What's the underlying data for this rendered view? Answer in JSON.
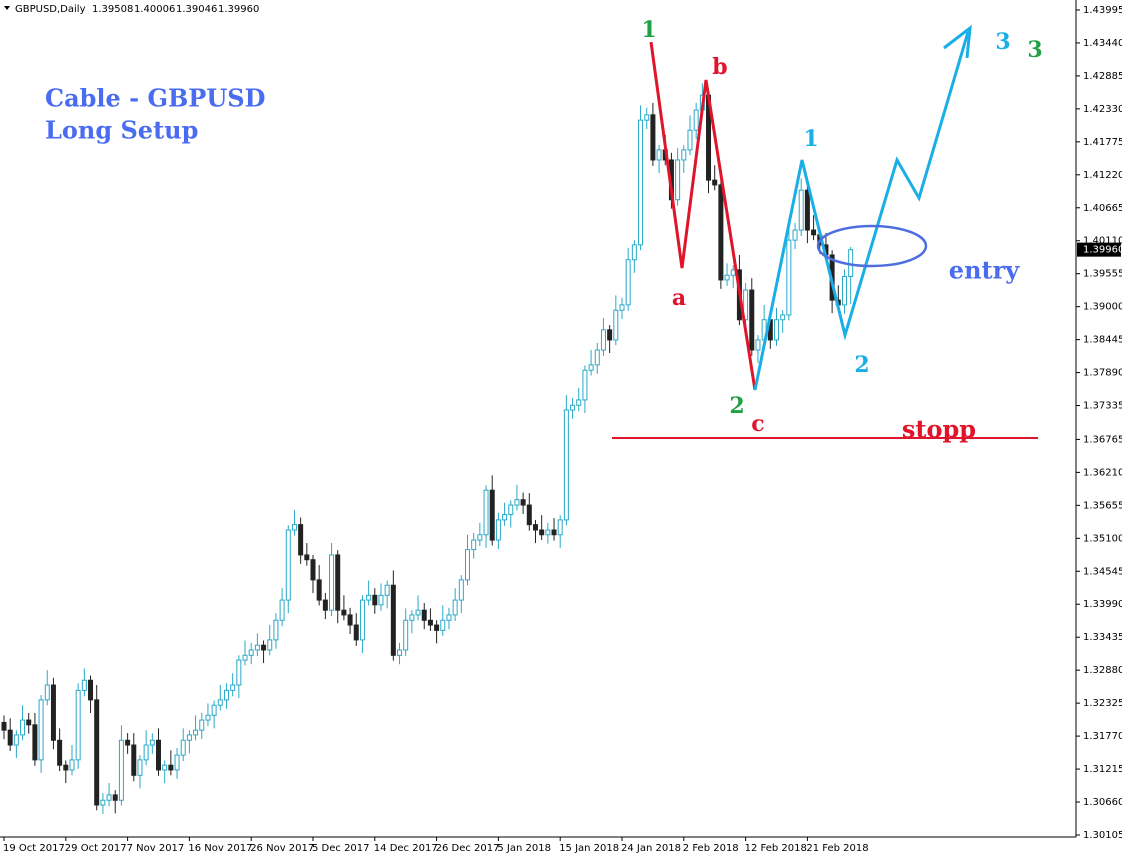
{
  "chart_data": {
    "type": "candlestick",
    "symbol": "GBPUSD,Daily",
    "header_values": [
      "1.39508",
      "1.40006",
      "1.39046",
      "1.39960"
    ],
    "categories": [
      "19 Oct 2017",
      null,
      null,
      null,
      null,
      null,
      null,
      null,
      null,
      null,
      "29 Oct 2017",
      null,
      null,
      null,
      null,
      null,
      null,
      null,
      null,
      null,
      "7 Nov 2017",
      null,
      null,
      null,
      null,
      null,
      null,
      null,
      null,
      null,
      "16 Nov 2017",
      null,
      null,
      null,
      null,
      null,
      null,
      null,
      null,
      null,
      "26 Nov 2017",
      null,
      null,
      null,
      null,
      null,
      null,
      null,
      null,
      null,
      "5 Dec 2017",
      null,
      null,
      null,
      null,
      null,
      null,
      null,
      null,
      null,
      "14 Dec 2017",
      null,
      null,
      null,
      null,
      null,
      null,
      null,
      null,
      null,
      "26 Dec 2017",
      null,
      null,
      null,
      null,
      null,
      null,
      null,
      null,
      null,
      "5 Jan 2018",
      null,
      null,
      null,
      null,
      null,
      null,
      null,
      null,
      null,
      "15 Jan 2018",
      null,
      null,
      null,
      null,
      null,
      null,
      null,
      null,
      null,
      "24 Jan 2018",
      null,
      null,
      null,
      null,
      null,
      null,
      null,
      null,
      null,
      "2 Feb 2018",
      null,
      null,
      null,
      null,
      null,
      null,
      null,
      null,
      null,
      "12 Feb 2018",
      null,
      null,
      null,
      null,
      null,
      null,
      null,
      null,
      null,
      "21 Feb 2018",
      null,
      null,
      null,
      null,
      null,
      null,
      null
    ],
    "open": [
      1.32,
      1.3187,
      1.3162,
      1.3179,
      1.3204,
      1.3196,
      1.3137,
      1.3238,
      1.3263,
      1.317,
      1.3128,
      1.312,
      1.3137,
      1.3254,
      1.3271,
      1.3238,
      1.3061,
      1.3069,
      1.3078,
      1.3069,
      1.317,
      1.3162,
      1.3111,
      1.3137,
      1.3162,
      1.317,
      1.312,
      1.3128,
      1.312,
      1.3145,
      1.317,
      1.3179,
      1.3187,
      1.3204,
      1.3212,
      1.3229,
      1.3238,
      1.3254,
      1.3263,
      1.3305,
      1.3313,
      1.3322,
      1.333,
      1.3322,
      1.3339,
      1.3372,
      1.3406,
      1.3524,
      1.3533,
      1.3482,
      1.3474,
      1.344,
      1.3406,
      1.3389,
      1.3482,
      1.3389,
      1.3381,
      1.3364,
      1.3339,
      1.3406,
      1.3414,
      1.3398,
      1.3414,
      1.3431,
      1.3313,
      1.3322,
      1.3372,
      1.3381,
      1.3389,
      1.3372,
      1.3364,
      1.3355,
      1.3372,
      1.3381,
      1.3406,
      1.344,
      1.3491,
      1.3507,
      1.3516,
      1.3591,
      1.3507,
      1.3541,
      1.355,
      1.3566,
      1.3575,
      1.3566,
      1.3533,
      1.3524,
      1.3516,
      1.3524,
      1.3516,
      1.3541,
      1.3726,
      1.3734,
      1.3743,
      1.3793,
      1.3802,
      1.3827,
      1.3861,
      1.3844,
      1.3894,
      1.3903,
      1.3979,
      1.4004,
      1.4214,
      1.4223,
      1.4147,
      1.4164,
      1.4147,
      1.408,
      1.4147,
      1.4164,
      1.4197,
      1.4231,
      1.4256,
      1.4113,
      1.4105,
      1.3945,
      1.3953,
      1.3962,
      1.3878,
      1.3928,
      1.3827,
      1.3844,
      1.3878,
      1.3844,
      1.3878,
      1.3886,
      1.4012,
      1.4029,
      1.4096,
      1.4029,
      1.4021,
      1.4004,
      1.3987,
      1.3911,
      1.3903,
      1.39508
    ],
    "high": [
      1.3212,
      1.3207,
      1.3187,
      1.3229,
      1.3216,
      1.3216,
      1.3246,
      1.3288,
      1.3275,
      1.319,
      1.3136,
      1.3162,
      1.3266,
      1.3291,
      1.3279,
      1.3263,
      1.3081,
      1.3098,
      1.3086,
      1.3195,
      1.3182,
      1.3182,
      1.3145,
      1.3187,
      1.3182,
      1.319,
      1.3136,
      1.3153,
      1.3157,
      1.319,
      1.3187,
      1.3212,
      1.3216,
      1.3232,
      1.3237,
      1.3263,
      1.3266,
      1.3283,
      1.3313,
      1.3338,
      1.3334,
      1.335,
      1.3338,
      1.3364,
      1.3384,
      1.3426,
      1.3532,
      1.3558,
      1.3545,
      1.3502,
      1.3482,
      1.3465,
      1.3418,
      1.3502,
      1.349,
      1.3414,
      1.3393,
      1.3384,
      1.3414,
      1.3439,
      1.3426,
      1.3434,
      1.3439,
      1.3456,
      1.3334,
      1.3392,
      1.3389,
      1.3414,
      1.3401,
      1.3392,
      1.3372,
      1.3397,
      1.3393,
      1.3426,
      1.3448,
      1.3516,
      1.3519,
      1.3536,
      1.3599,
      1.3616,
      1.3553,
      1.357,
      1.3574,
      1.36,
      1.3587,
      1.3586,
      1.3541,
      1.3549,
      1.3536,
      1.3544,
      1.3549,
      1.3751,
      1.3746,
      1.3763,
      1.3801,
      1.3827,
      1.3839,
      1.3881,
      1.3869,
      1.3919,
      1.3915,
      1.3999,
      1.4012,
      1.4239,
      1.4235,
      1.4243,
      1.4172,
      1.4189,
      1.4159,
      1.4167,
      1.4172,
      1.4222,
      1.4243,
      1.4276,
      1.4264,
      1.4138,
      1.4117,
      1.3973,
      1.397,
      1.3987,
      1.394,
      1.3948,
      1.3852,
      1.3903,
      1.389,
      1.3898,
      1.3894,
      1.4037,
      1.4041,
      1.4116,
      1.4104,
      1.4054,
      1.4033,
      1.4024,
      1.3995,
      1.3936,
      1.3963,
      1.40006
    ],
    "low": [
      1.3172,
      1.3152,
      1.314,
      1.317,
      1.3181,
      1.3127,
      1.3115,
      1.3229,
      1.3155,
      1.3118,
      1.3098,
      1.3111,
      1.3122,
      1.3244,
      1.3216,
      1.3052,
      1.3046,
      1.3059,
      1.3047,
      1.306,
      1.3147,
      1.3101,
      1.3089,
      1.3128,
      1.3147,
      1.311,
      1.3098,
      1.3111,
      1.3105,
      1.3135,
      1.3148,
      1.317,
      1.3172,
      1.3194,
      1.319,
      1.322,
      1.3223,
      1.3244,
      1.3241,
      1.3296,
      1.3298,
      1.3312,
      1.33,
      1.3313,
      1.3324,
      1.3362,
      1.3384,
      1.3515,
      1.3467,
      1.3464,
      1.3418,
      1.3397,
      1.3374,
      1.3379,
      1.3367,
      1.3372,
      1.3349,
      1.3329,
      1.3317,
      1.3397,
      1.3383,
      1.3388,
      1.3392,
      1.3304,
      1.3298,
      1.3312,
      1.335,
      1.3372,
      1.3357,
      1.3354,
      1.3333,
      1.3346,
      1.3357,
      1.3371,
      1.3384,
      1.3431,
      1.3476,
      1.3497,
      1.3494,
      1.3498,
      1.3492,
      1.3531,
      1.3528,
      1.3557,
      1.3551,
      1.3523,
      1.3502,
      1.3507,
      1.3501,
      1.3506,
      1.3494,
      1.3532,
      1.3711,
      1.3724,
      1.3721,
      1.3784,
      1.3787,
      1.3817,
      1.3822,
      1.3835,
      1.3879,
      1.3893,
      1.3957,
      1.3995,
      1.4199,
      1.4137,
      1.4125,
      1.4138,
      1.4065,
      1.407,
      1.4125,
      1.4155,
      1.4182,
      1.4221,
      1.4091,
      1.4096,
      1.393,
      1.3935,
      1.3931,
      1.3869,
      1.3863,
      1.3817,
      1.3805,
      1.3835,
      1.3829,
      1.3834,
      1.3856,
      1.3877,
      1.3997,
      1.4019,
      1.4007,
      1.4012,
      1.3989,
      1.3977,
      1.3889,
      1.3894,
      1.3888,
      1.39046
    ],
    "close": [
      1.3187,
      1.3162,
      1.3179,
      1.3204,
      1.3196,
      1.3137,
      1.3238,
      1.3263,
      1.317,
      1.3128,
      1.312,
      1.3137,
      1.3254,
      1.3271,
      1.3238,
      1.3061,
      1.3069,
      1.3078,
      1.3069,
      1.317,
      1.3162,
      1.3111,
      1.3137,
      1.3162,
      1.317,
      1.312,
      1.3128,
      1.312,
      1.3145,
      1.317,
      1.3179,
      1.3187,
      1.3204,
      1.3212,
      1.3229,
      1.3238,
      1.3254,
      1.3263,
      1.3305,
      1.3313,
      1.3322,
      1.333,
      1.3322,
      1.3339,
      1.3372,
      1.3406,
      1.3524,
      1.3533,
      1.3482,
      1.3474,
      1.344,
      1.3406,
      1.3389,
      1.3482,
      1.3389,
      1.3381,
      1.3364,
      1.3339,
      1.3406,
      1.3414,
      1.3398,
      1.3414,
      1.3431,
      1.3313,
      1.3322,
      1.3372,
      1.3381,
      1.3389,
      1.3372,
      1.3364,
      1.3355,
      1.3372,
      1.3381,
      1.3406,
      1.344,
      1.3491,
      1.3507,
      1.3516,
      1.3591,
      1.3507,
      1.3541,
      1.355,
      1.3566,
      1.3575,
      1.3566,
      1.3533,
      1.3524,
      1.3516,
      1.3524,
      1.3516,
      1.3541,
      1.3726,
      1.3734,
      1.3743,
      1.3793,
      1.3802,
      1.3827,
      1.3861,
      1.3844,
      1.3894,
      1.3903,
      1.3979,
      1.4004,
      1.4214,
      1.4223,
      1.4147,
      1.4164,
      1.4147,
      1.408,
      1.4147,
      1.4164,
      1.4197,
      1.4231,
      1.4256,
      1.4113,
      1.4105,
      1.3945,
      1.3953,
      1.3962,
      1.3878,
      1.3928,
      1.3827,
      1.3844,
      1.3878,
      1.3844,
      1.3878,
      1.3886,
      1.4012,
      1.4029,
      1.4096,
      1.4029,
      1.4021,
      1.4004,
      1.3987,
      1.3911,
      1.3903,
      1.39508,
      1.3996
    ],
    "up_color": "#29a9c9",
    "down_color": "#222222",
    "ylim": [
      1.30105,
      1.44163
    ],
    "yticks": [
      1.43995,
      {
        "value": 1.4344,
        "label": "1.43440"
      },
      1.42885,
      {
        "value": 1.4233,
        "label": "1.42330"
      },
      1.41775,
      {
        "value": 1.4122,
        "label": "1.41220"
      },
      1.40665,
      {
        "value": 1.4011,
        "label": "1.40110"
      },
      1.39555,
      {
        "value": 1.39,
        "label": "1.39000"
      },
      1.38445,
      {
        "value": 1.3789,
        "label": "1.37890"
      },
      1.37335,
      1.36765,
      {
        "value": 1.3621,
        "label": "1.36210"
      },
      1.35655,
      {
        "value": 1.351,
        "label": "1.35100"
      },
      1.34545,
      {
        "value": 1.3399,
        "label": "1.33990"
      },
      1.33435,
      {
        "value": 1.3288,
        "label": "1.32880"
      },
      1.32325,
      {
        "value": 1.3177,
        "label": "1.31770"
      },
      1.31215,
      {
        "value": 1.3066,
        "label": "1.30660"
      },
      1.30105
    ],
    "grid": false,
    "annotations": [
      {
        "text": "Cable - GBPUSD",
        "color": "#4a6cf0"
      },
      {
        "text": "Long Setup",
        "color": "#4a6cf0"
      },
      {
        "text": "1",
        "color": "#22a045"
      },
      {
        "text": "b",
        "color": "#e0142a"
      },
      {
        "text": "a",
        "color": "#e0142a"
      },
      {
        "text": "c",
        "color": "#e0142a"
      },
      {
        "text": "2",
        "color": "#22a045"
      },
      {
        "text": "1",
        "color": "#1aaee6"
      },
      {
        "text": "2",
        "color": "#1aaee6"
      },
      {
        "text": "3",
        "color": "#1aaee6"
      },
      {
        "text": "3",
        "color": "#22a045"
      },
      {
        "text": "entry",
        "color": "#4a6cf0"
      },
      {
        "text": "stopp",
        "color": "#e0142a"
      }
    ]
  }
}
